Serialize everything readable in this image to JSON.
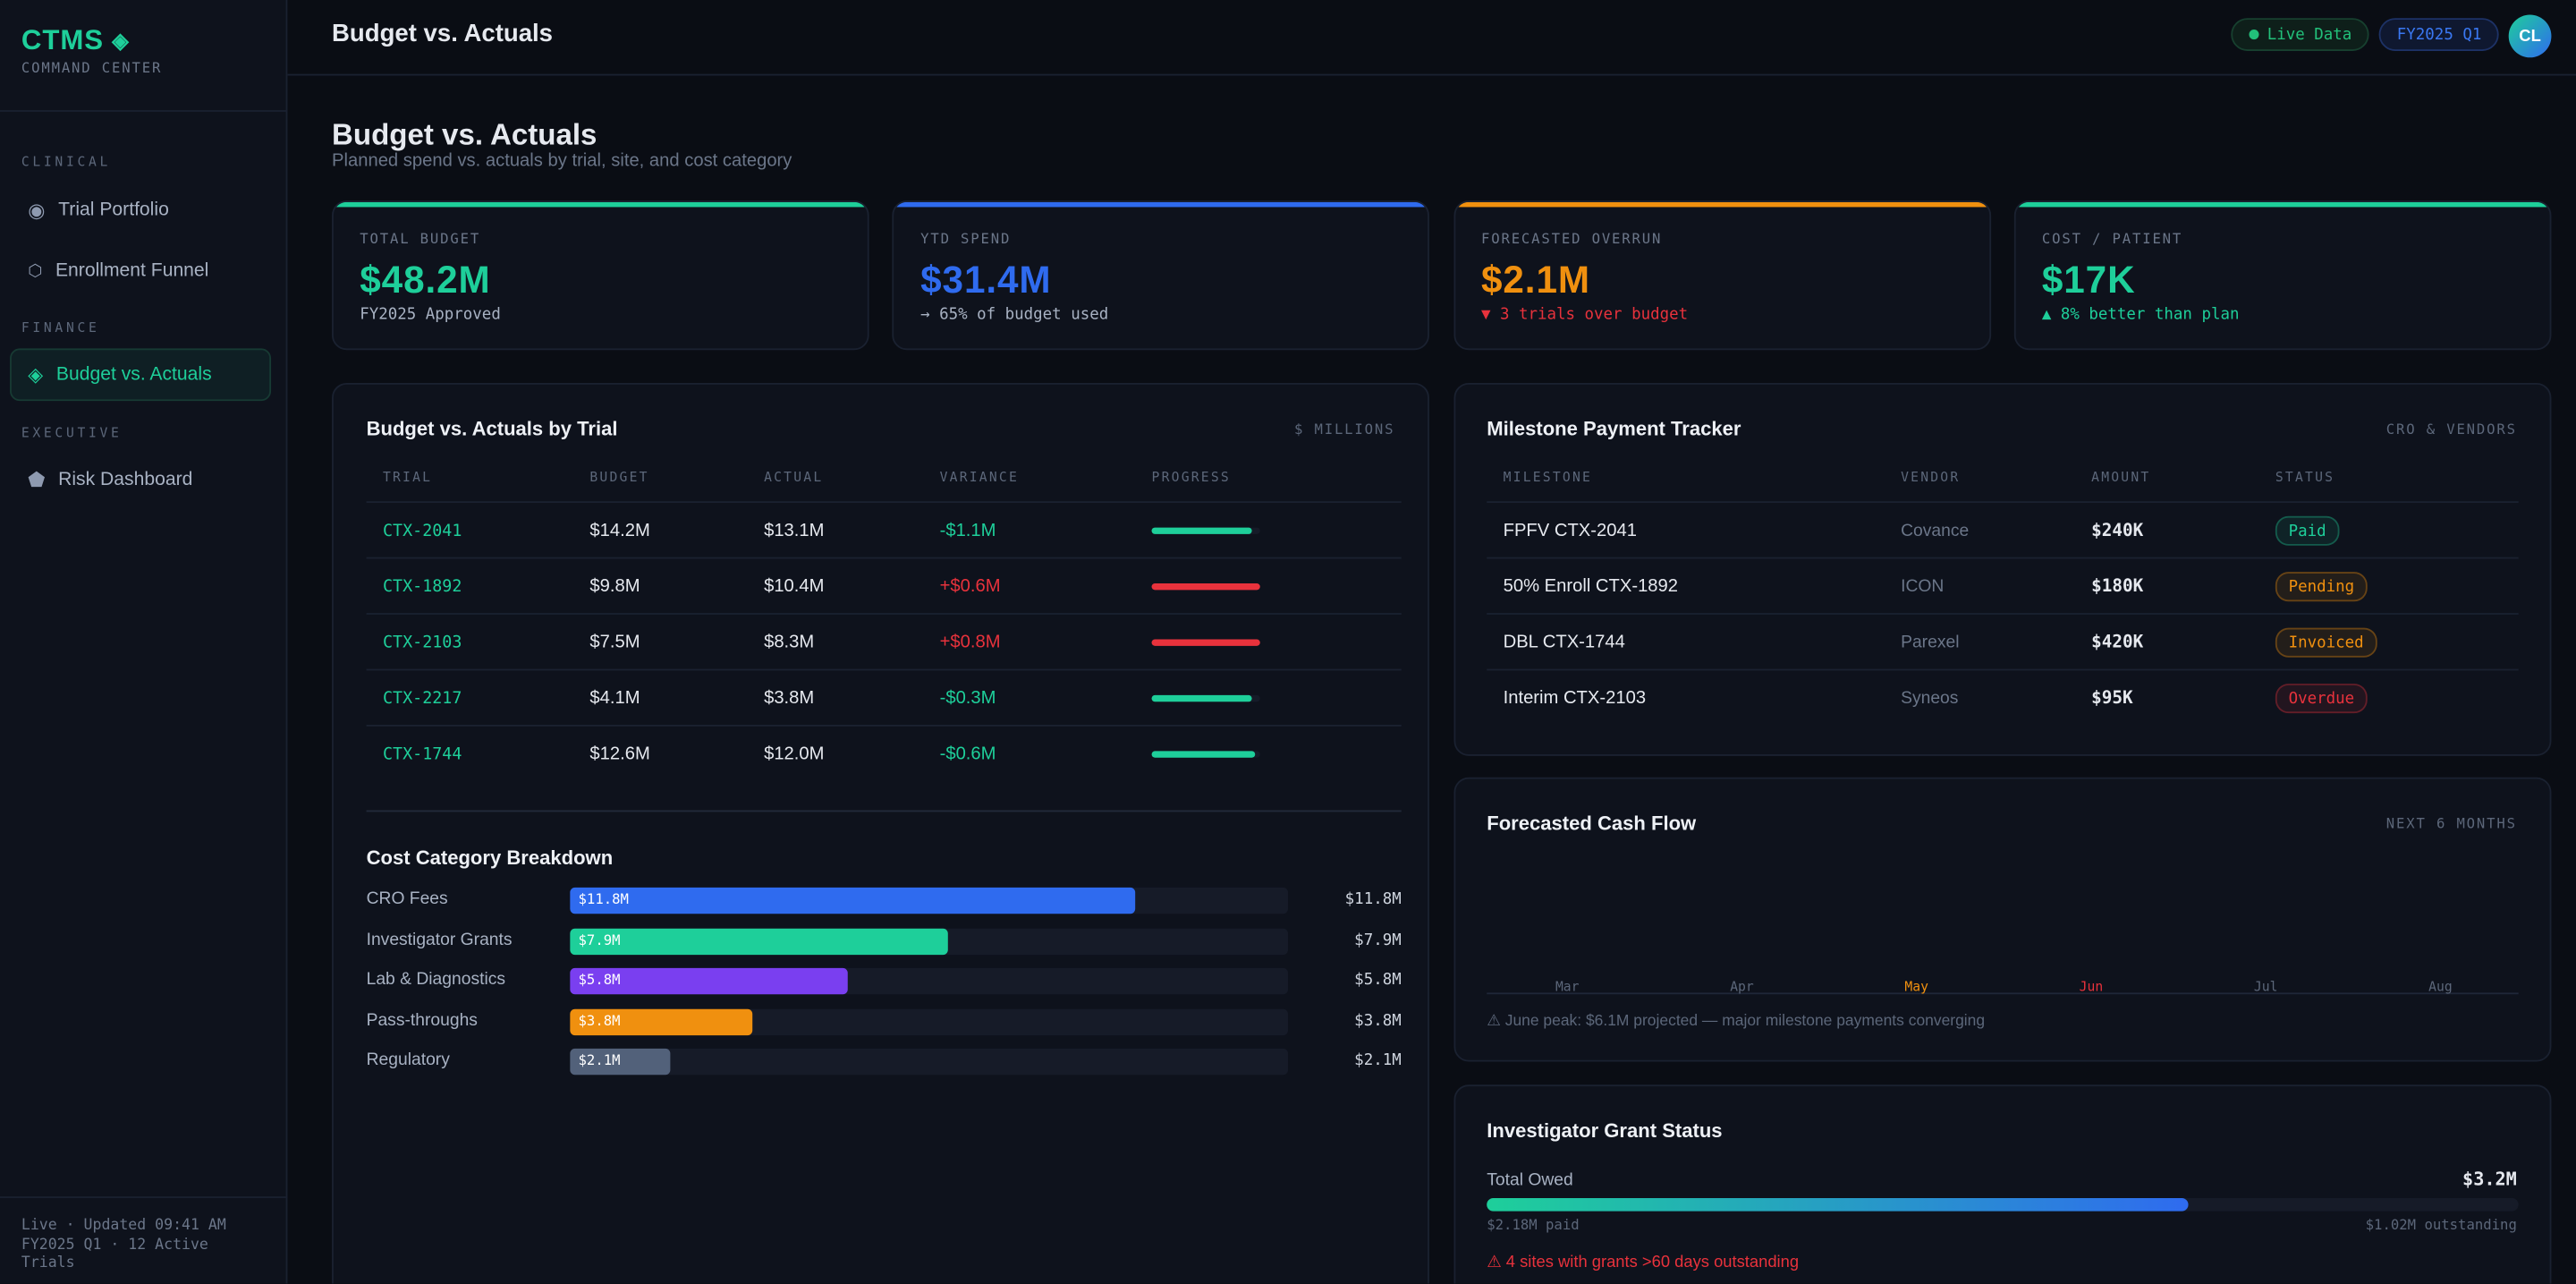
{
  "colors": {
    "accent": "#1ecf9a",
    "blue": "#2f6bef",
    "orange": "#f0900f",
    "red": "#e8323c",
    "purple": "#7a3ff0",
    "slate": "#52617a"
  },
  "sidebar": {
    "logo": "CTMS",
    "logo_sub": "COMMAND CENTER",
    "sections": [
      {
        "label": "CLINICAL"
      },
      {
        "label": "FINANCE"
      },
      {
        "label": "EXECUTIVE"
      }
    ],
    "items": [
      {
        "label": "Trial Portfolio",
        "icon": "target-icon"
      },
      {
        "label": "Enrollment Funnel",
        "icon": "hexagon-icon"
      },
      {
        "label": "Budget vs. Actuals",
        "icon": "diamond-icon",
        "active": true
      },
      {
        "label": "Risk Dashboard",
        "icon": "pentagon-icon"
      }
    ],
    "footer": "Live · Updated 09:41 AM FY2025 Q1 · 12 Active Trials"
  },
  "header": {
    "title": "Budget vs. Actuals",
    "live_label": "Live Data",
    "period_label": "FY2025 Q1",
    "avatar_initials": "CL"
  },
  "page": {
    "title": "Budget vs. Actuals",
    "subtitle": "Planned spend vs. actuals by trial, site, and cost category"
  },
  "kpis": [
    {
      "label": "TOTAL BUDGET",
      "value": "$48.2M",
      "sub": "FY2025 Approved",
      "color": "#1ecf9a",
      "sub_color": "#a8b2c3"
    },
    {
      "label": "YTD SPEND",
      "value": "$31.4M",
      "sub": "→ 65% of budget used",
      "color": "#2f6bef",
      "sub_color": "#a8b2c3"
    },
    {
      "label": "FORECASTED OVERRUN",
      "value": "$2.1M",
      "sub": "▼ 3 trials over budget",
      "color": "#f0900f",
      "sub_color": "#e8323c"
    },
    {
      "label": "COST / PATIENT",
      "value": "$17K",
      "sub": "▲ 8% better than plan",
      "color": "#1ecf9a",
      "sub_color": "#1ecf9a"
    }
  ],
  "trial_table": {
    "title": "Budget vs. Actuals by Trial",
    "tag": "$ MILLIONS",
    "columns": [
      "TRIAL",
      "BUDGET",
      "ACTUAL",
      "VARIANCE",
      "PROGRESS"
    ],
    "rows": [
      {
        "trial": "CTX-2041",
        "budget": "$14.2M",
        "actual": "$13.1M",
        "variance": "-$1.1M",
        "over": false,
        "progress": 92
      },
      {
        "trial": "CTX-1892",
        "budget": "$9.8M",
        "actual": "$10.4M",
        "variance": "+$0.6M",
        "over": true,
        "progress": 100
      },
      {
        "trial": "CTX-2103",
        "budget": "$7.5M",
        "actual": "$8.3M",
        "variance": "+$0.8M",
        "over": true,
        "progress": 100
      },
      {
        "trial": "CTX-2217",
        "budget": "$4.1M",
        "actual": "$3.8M",
        "variance": "-$0.3M",
        "over": false,
        "progress": 93
      },
      {
        "trial": "CTX-1744",
        "budget": "$12.6M",
        "actual": "$12.0M",
        "variance": "-$0.6M",
        "over": false,
        "progress": 95
      }
    ]
  },
  "cost_breakdown": {
    "title": "Cost Category Breakdown",
    "max": 15,
    "items": [
      {
        "label": "CRO Fees",
        "value": 11.8,
        "text": "$11.8M",
        "color": "#2f6bef"
      },
      {
        "label": "Investigator Grants",
        "value": 7.9,
        "text": "$7.9M",
        "color": "#1ecf9a"
      },
      {
        "label": "Lab & Diagnostics",
        "value": 5.8,
        "text": "$5.8M",
        "color": "#7a3ff0"
      },
      {
        "label": "Pass-throughs",
        "value": 3.8,
        "text": "$3.8M",
        "color": "#f0900f"
      },
      {
        "label": "Regulatory",
        "value": 2.1,
        "text": "$2.1M",
        "color": "#52617a"
      }
    ]
  },
  "milestones": {
    "title": "Milestone Payment Tracker",
    "tag": "CRO & VENDORS",
    "columns": [
      "MILESTONE",
      "VENDOR",
      "AMOUNT",
      "STATUS"
    ],
    "rows": [
      {
        "milestone": "FPFV CTX-2041",
        "vendor": "Covance",
        "amount": "$240K",
        "status": "Paid",
        "status_color": "#1ecf9a"
      },
      {
        "milestone": "50% Enroll CTX-1892",
        "vendor": "ICON",
        "amount": "$180K",
        "status": "Pending",
        "status_color": "#f0900f"
      },
      {
        "milestone": "DBL CTX-1744",
        "vendor": "Parexel",
        "amount": "$420K",
        "status": "Invoiced",
        "status_color": "#f0900f"
      },
      {
        "milestone": "Interim CTX-2103",
        "vendor": "Syneos",
        "amount": "$95K",
        "status": "Overdue",
        "status_color": "#e8323c"
      }
    ]
  },
  "cash_flow": {
    "title": "Forecasted Cash Flow",
    "tag": "NEXT 6 MONTHS",
    "months": [
      {
        "label": "Mar",
        "color": "#5c677a"
      },
      {
        "label": "Apr",
        "color": "#5c677a"
      },
      {
        "label": "May",
        "color": "#f0900f"
      },
      {
        "label": "Jun",
        "color": "#e8323c"
      },
      {
        "label": "Jul",
        "color": "#5c677a"
      },
      {
        "label": "Aug",
        "color": "#5c677a"
      }
    ],
    "note": "⚠ June peak: $6.1M projected — major milestone payments converging"
  },
  "grants": {
    "title": "Investigator Grant Status",
    "total_label": "Total Owed",
    "total": "$3.2M",
    "paid_fraction": 0.68,
    "paid": "$2.18M paid",
    "outstanding": "$1.02M outstanding",
    "alert": "⚠ 4 sites with grants >60 days outstanding"
  }
}
